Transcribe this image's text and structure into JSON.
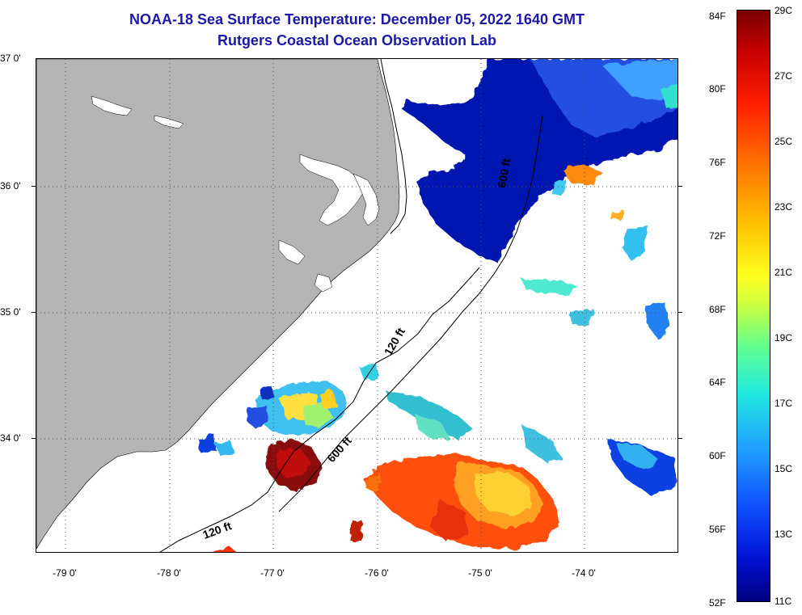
{
  "title": {
    "line1": "NOAA-18 Sea Surface Temperature:  December 05, 2022 1640 GMT",
    "line2": "Rutgers Coastal Ocean Observation Lab"
  },
  "map": {
    "lat_labels": [
      "37 0'",
      "36 0'",
      "35 0'",
      "34 0'"
    ],
    "lon_labels": [
      "-79 0'",
      "-78 0'",
      "-77 0'",
      "-76 0'",
      "-75 0'",
      "-74 0'"
    ],
    "isobath_labels": [
      "120 ft",
      "600 ft",
      "120 ft",
      "600 ft"
    ],
    "colors": {
      "land": "#b4b4b4",
      "ocean_no_data": "#ffffff"
    }
  },
  "colorbar": {
    "fahrenheit_labels": [
      "84F",
      "80F",
      "76F",
      "72F",
      "68F",
      "64F",
      "60F",
      "56F",
      "52F"
    ],
    "celsius_labels": [
      "29C",
      "27C",
      "25C",
      "23C",
      "21C",
      "19C",
      "17C",
      "15C",
      "13C",
      "11C"
    ]
  }
}
